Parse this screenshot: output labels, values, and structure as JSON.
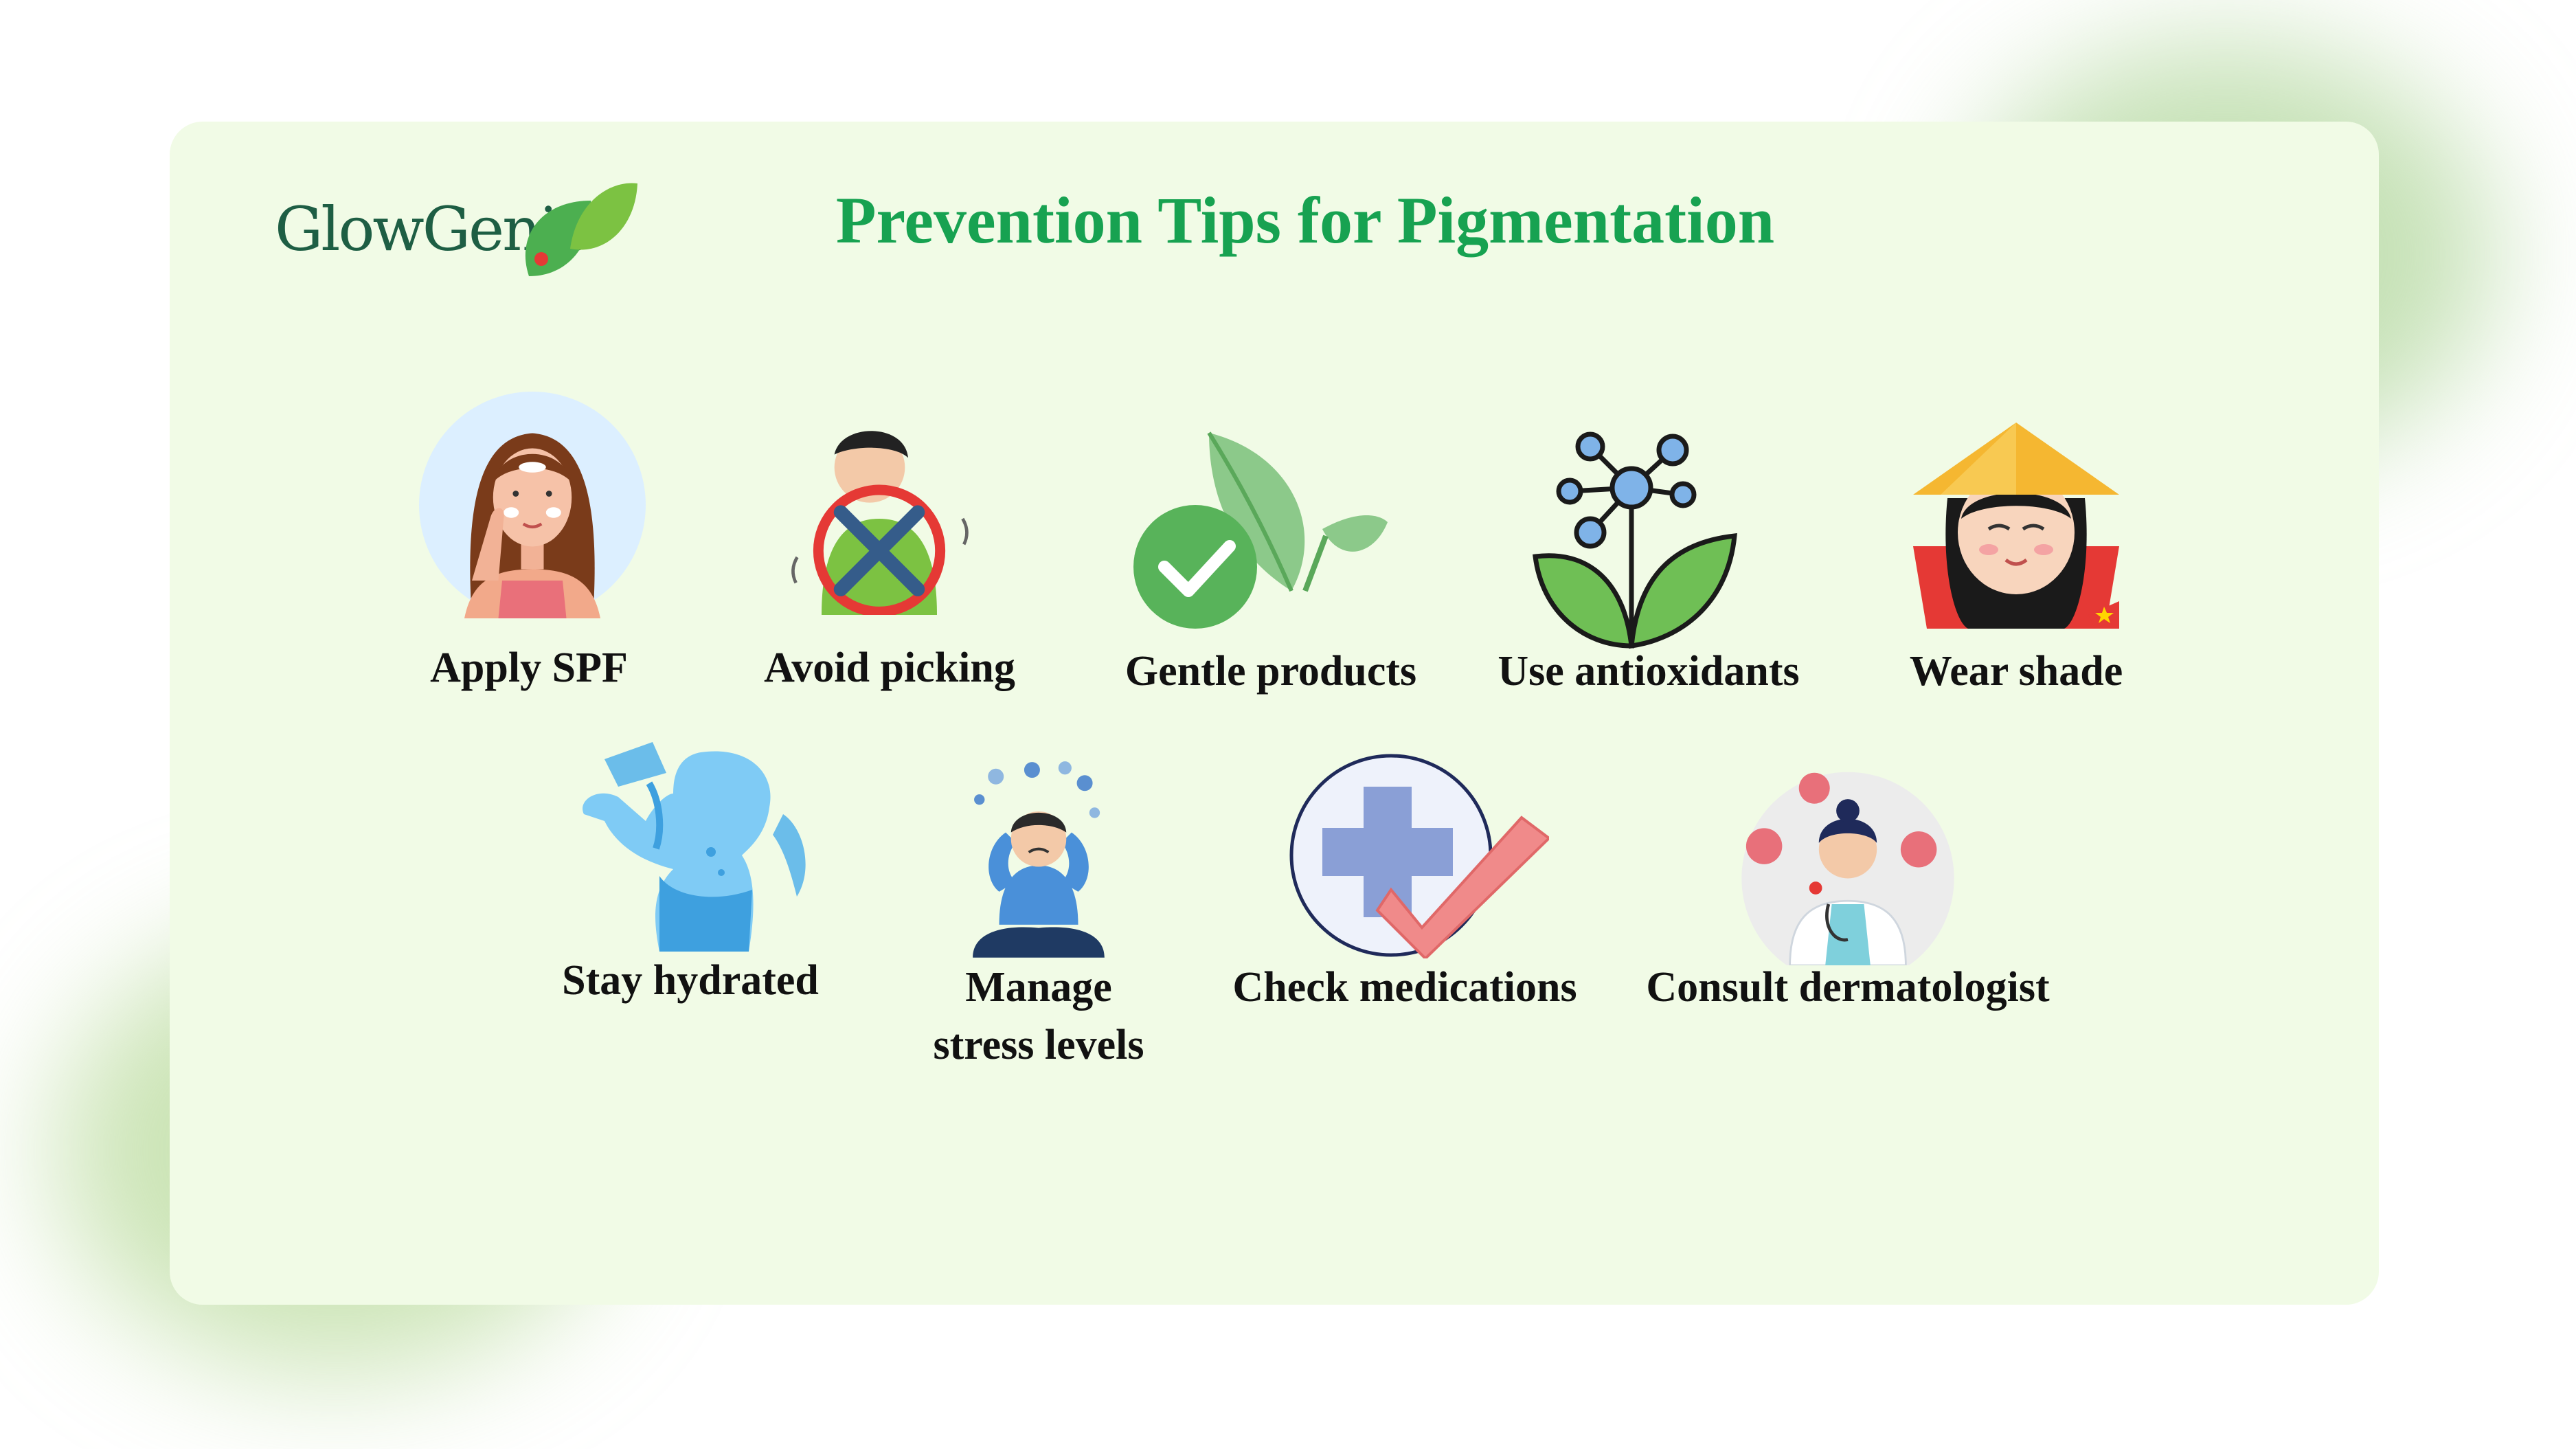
{
  "brand": {
    "logo_text": "GlowGenie"
  },
  "title": "Prevention Tips for Pigmentation",
  "tips": [
    {
      "label": "Apply SPF",
      "icon": "sunscreen-woman-icon"
    },
    {
      "label": "Avoid picking",
      "icon": "no-picking-icon"
    },
    {
      "label": "Gentle products",
      "icon": "leaf-check-icon"
    },
    {
      "label": "Use antioxidants",
      "icon": "molecule-leaves-icon"
    },
    {
      "label": "Wear shade",
      "icon": "conical-hat-icon"
    },
    {
      "label": "Stay hydrated",
      "icon": "drinking-water-icon"
    },
    {
      "label": "Manage",
      "label2": "stress levels",
      "icon": "stressed-person-icon"
    },
    {
      "label": "Check medications",
      "icon": "medical-cross-check-icon"
    },
    {
      "label": "Consult dermatologist",
      "icon": "doctor-icon"
    }
  ],
  "colors": {
    "title_green": "#17a251",
    "logo_green": "#1e5e44",
    "card_bg": "#f1fbe6"
  }
}
